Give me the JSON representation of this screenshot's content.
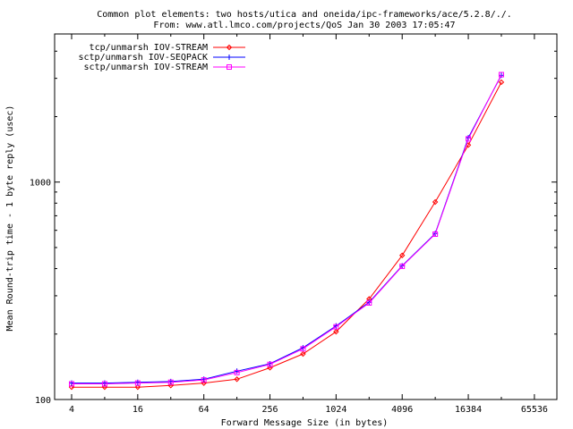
{
  "chart_data": {
    "type": "line",
    "title_line1": "Common plot elements: two hosts/utica and oneida/ipc-frameworks/ace/5.2.8/./.",
    "title_line2": "From: www.atl.lmco.com/projects/QoS   Jan 30 2003 17:05:47",
    "xlabel": "Forward Message Size (in bytes)",
    "ylabel": "Mean Round-trip time - 1 byte reply (usec)",
    "x_scale": "log2",
    "y_scale": "log10",
    "xlim": [
      2.8,
      105000
    ],
    "ylim": [
      100,
      4800
    ],
    "x_ticks": [
      4,
      16,
      64,
      256,
      1024,
      4096,
      16384,
      65536
    ],
    "x_tick_labels": [
      "4",
      "16",
      "64",
      "256",
      "1024",
      "4096",
      "16384",
      "65536"
    ],
    "y_ticks": [
      100,
      1000
    ],
    "y_tick_labels": [
      "100",
      "1000"
    ],
    "legend_position": "top-left",
    "series": [
      {
        "name": "tcp/unmarsh IOV-STREAM",
        "color": "#ff0000",
        "marker": "diamond",
        "x": [
          4,
          8,
          16,
          32,
          64,
          128,
          256,
          512,
          1024,
          2048,
          4096,
          8192,
          16384,
          32768
        ],
        "y": [
          114,
          114,
          114,
          116,
          119,
          124,
          140,
          162,
          205,
          290,
          460,
          810,
          1480,
          2880
        ]
      },
      {
        "name": "sctp/unmarsh IOV-SEQPACK",
        "color": "#0000ff",
        "marker": "plus",
        "x": [
          4,
          8,
          16,
          32,
          64,
          128,
          256,
          512,
          1024,
          2048,
          4096,
          8192,
          16384,
          32768
        ],
        "y": [
          119,
          119,
          120,
          121,
          124,
          135,
          146,
          173,
          218,
          280,
          412,
          580,
          1600,
          3100
        ]
      },
      {
        "name": "sctp/unmarsh IOV-STREAM",
        "color": "#ff00ff",
        "marker": "square",
        "x": [
          4,
          8,
          16,
          32,
          64,
          128,
          256,
          512,
          1024,
          2048,
          4096,
          8192,
          16384,
          32768
        ],
        "y": [
          118,
          118,
          119,
          120,
          123,
          133,
          145,
          171,
          216,
          278,
          410,
          576,
          1580,
          3120
        ]
      }
    ]
  }
}
